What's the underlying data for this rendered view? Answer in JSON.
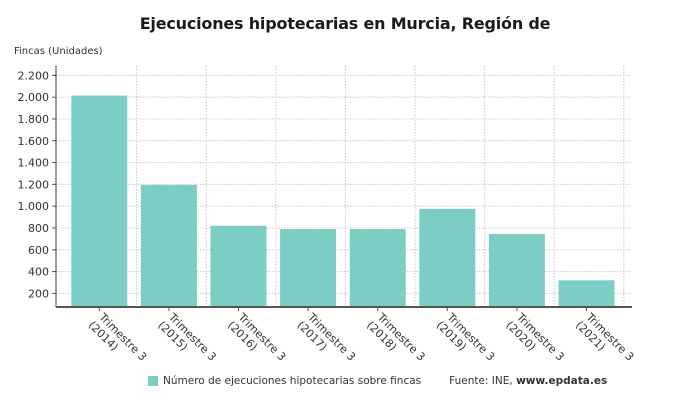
{
  "title": "Ejecuciones hipotecarias en Murcia, Región de",
  "legend": {
    "series_label": "Número de ejecuciones hipotecarias sobre fincas",
    "source_prefix": "Fuente: INE, ",
    "source_site": "www.epdata.es"
  },
  "colors": {
    "bar": "#7ccdc4",
    "grid": "#c8c8c8",
    "axis": "#555555"
  },
  "chart_data": {
    "type": "bar",
    "title": "Ejecuciones hipotecarias en Murcia, Región de",
    "xlabel": "",
    "ylabel": "Fincas (Unidades)",
    "categories": [
      "Trimestre 3 (2014)",
      "Trimestre 3 (2015)",
      "Trimestre 3 (2016)",
      "Trimestre 3 (2017)",
      "Trimestre 3 (2018)",
      "Trimestre 3 (2019)",
      "Trimestre 3 (2020)",
      "Trimestre 3 (2021)"
    ],
    "category_lines": [
      [
        "Trimestre 3",
        "(2014)"
      ],
      [
        "Trimestre 3",
        "(2015)"
      ],
      [
        "Trimestre 3",
        "(2016)"
      ],
      [
        "Trimestre 3",
        "(2017)"
      ],
      [
        "Trimestre 3",
        "(2018)"
      ],
      [
        "Trimestre 3",
        "(2019)"
      ],
      [
        "Trimestre 3",
        "(2020)"
      ],
      [
        "Trimestre 3",
        "(2021)"
      ]
    ],
    "series": [
      {
        "name": "Número de ejecuciones hipotecarias sobre fincas",
        "values": [
          2015,
          1195,
          820,
          790,
          790,
          975,
          745,
          320
        ]
      }
    ],
    "yticks": [
      200,
      400,
      600,
      800,
      1000,
      1200,
      1400,
      1600,
      1800,
      2000,
      2200
    ],
    "ytick_labels": [
      "200",
      "400",
      "600",
      "800",
      "1.000",
      "1.200",
      "1.400",
      "1.600",
      "1.800",
      "2.000",
      "2.200"
    ],
    "ylim": [
      75,
      2300
    ],
    "grid": true,
    "legend_position": "bottom"
  }
}
